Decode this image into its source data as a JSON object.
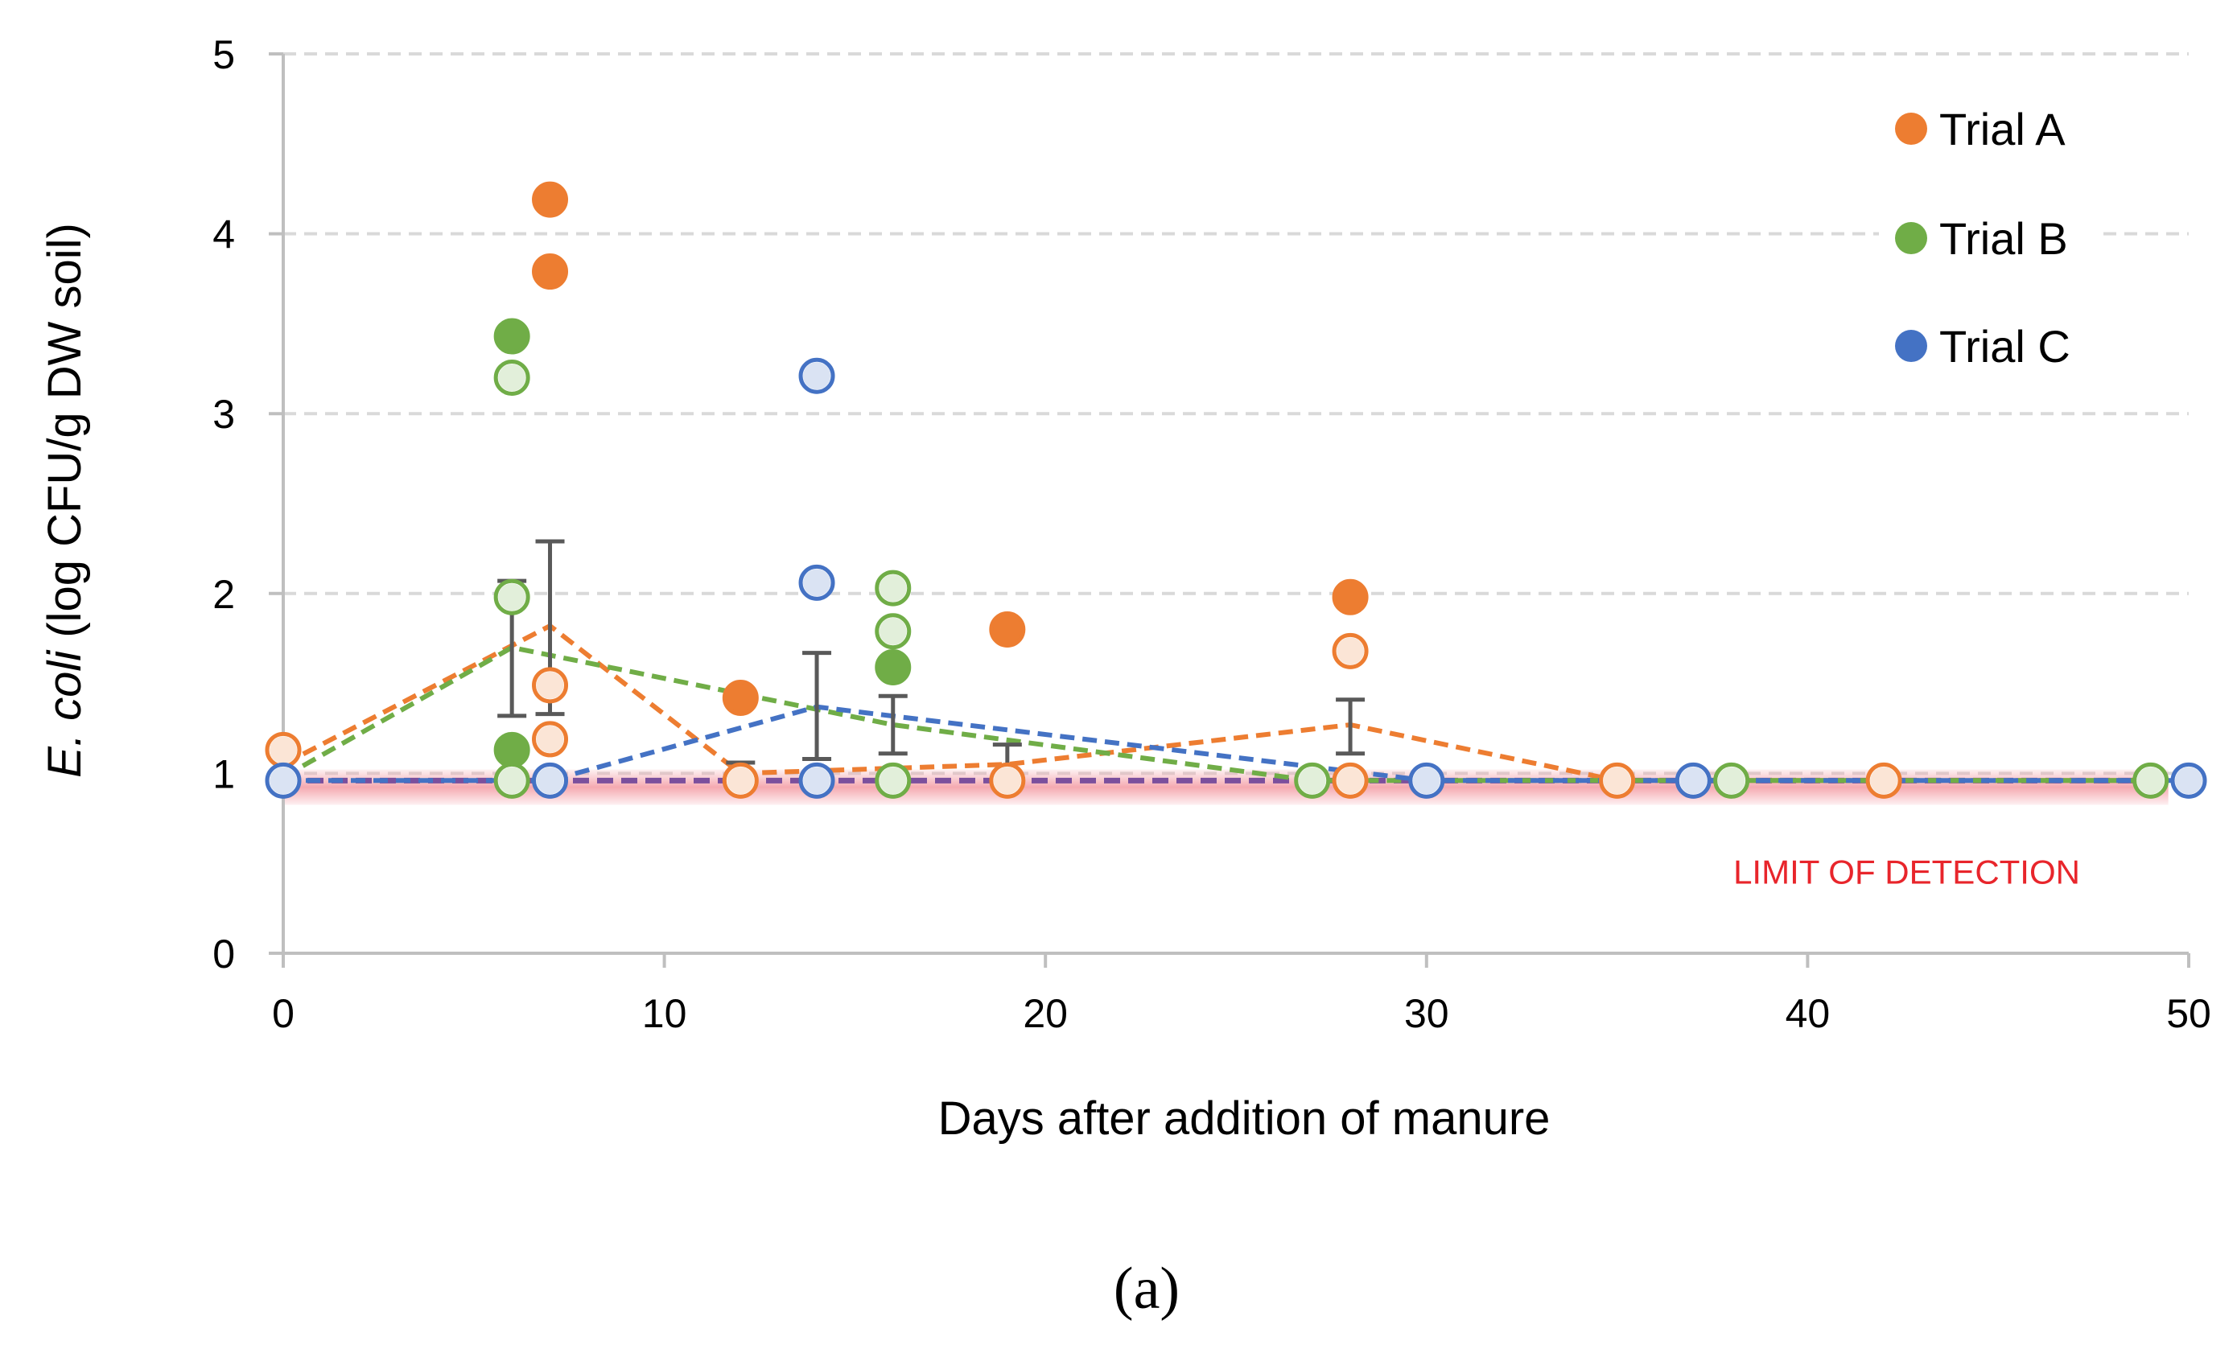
{
  "chart_data": {
    "type": "scatter",
    "title": "",
    "xlabel": "Days after addition of manure",
    "ylabel_italic": "E. coli",
    "ylabel_rest": " (log CFU/g DW soil)",
    "xlim": [
      0,
      50
    ],
    "ylim": [
      0,
      5
    ],
    "xticks": [
      "0",
      "10",
      "20",
      "30",
      "40",
      "50"
    ],
    "yticks": [
      "0",
      "1",
      "2",
      "3",
      "4",
      "5"
    ],
    "grid": "horizontal dashed",
    "legend_position": "top-right",
    "limit_of_detection": {
      "label": "LIMIT OF DETECTION",
      "value": 0.95,
      "color": "#f4a0a8"
    },
    "caption": "(a)",
    "colors": {
      "A": "#ed7d31",
      "B": "#70ad47",
      "C": "#4472c4",
      "errorbar": "#595959",
      "grid": "#d9d9d9",
      "axis": "#bfbfbf"
    },
    "series": [
      {
        "key": "A",
        "name": "Trial A",
        "color": "#ed7d31",
        "points": [
          {
            "x": 0,
            "y": 1.13,
            "fill": "open"
          },
          {
            "x": 7,
            "y": 4.19,
            "fill": "solid"
          },
          {
            "x": 7,
            "y": 3.79,
            "fill": "solid"
          },
          {
            "x": 7,
            "y": 1.49,
            "fill": "open"
          },
          {
            "x": 7,
            "y": 1.19,
            "fill": "open"
          },
          {
            "x": 12,
            "y": 1.42,
            "fill": "solid"
          },
          {
            "x": 12,
            "y": 0.96,
            "fill": "open"
          },
          {
            "x": 19,
            "y": 1.8,
            "fill": "solid"
          },
          {
            "x": 19,
            "y": 0.96,
            "fill": "open"
          },
          {
            "x": 28,
            "y": 1.98,
            "fill": "solid"
          },
          {
            "x": 28,
            "y": 1.68,
            "fill": "open"
          },
          {
            "x": 28,
            "y": 0.96,
            "fill": "open"
          },
          {
            "x": 35,
            "y": 0.96,
            "fill": "open"
          },
          {
            "x": 42,
            "y": 0.96,
            "fill": "open"
          }
        ],
        "mean_line": [
          {
            "x": 0,
            "y": 1.05
          },
          {
            "x": 7,
            "y": 1.82
          },
          {
            "x": 12,
            "y": 1.0
          },
          {
            "x": 19,
            "y": 1.05
          },
          {
            "x": 28,
            "y": 1.27
          },
          {
            "x": 35,
            "y": 0.96
          },
          {
            "x": 49,
            "y": 0.96
          }
        ]
      },
      {
        "key": "B",
        "name": "Trial B",
        "color": "#70ad47",
        "points": [
          {
            "x": 6,
            "y": 3.43,
            "fill": "solid"
          },
          {
            "x": 6,
            "y": 3.2,
            "fill": "open"
          },
          {
            "x": 6,
            "y": 1.98,
            "fill": "open"
          },
          {
            "x": 6,
            "y": 1.13,
            "fill": "solid"
          },
          {
            "x": 6,
            "y": 0.96,
            "fill": "open"
          },
          {
            "x": 16,
            "y": 2.03,
            "fill": "open"
          },
          {
            "x": 16,
            "y": 1.79,
            "fill": "open"
          },
          {
            "x": 16,
            "y": 1.59,
            "fill": "solid"
          },
          {
            "x": 16,
            "y": 0.96,
            "fill": "open"
          },
          {
            "x": 27,
            "y": 0.96,
            "fill": "open"
          },
          {
            "x": 38,
            "y": 0.96,
            "fill": "open"
          },
          {
            "x": 49,
            "y": 0.96,
            "fill": "open"
          }
        ],
        "mean_line": [
          {
            "x": 0,
            "y": 0.98
          },
          {
            "x": 6,
            "y": 1.7
          },
          {
            "x": 16,
            "y": 1.27
          },
          {
            "x": 27,
            "y": 0.96
          },
          {
            "x": 49,
            "y": 0.96
          }
        ]
      },
      {
        "key": "C",
        "name": "Trial C",
        "color": "#4472c4",
        "points": [
          {
            "x": 0,
            "y": 0.96,
            "fill": "open"
          },
          {
            "x": 7,
            "y": 0.96,
            "fill": "open"
          },
          {
            "x": 14,
            "y": 3.21,
            "fill": "open"
          },
          {
            "x": 14,
            "y": 2.06,
            "fill": "open"
          },
          {
            "x": 14,
            "y": 0.96,
            "fill": "open"
          },
          {
            "x": 30,
            "y": 0.96,
            "fill": "open"
          },
          {
            "x": 37,
            "y": 0.96,
            "fill": "open"
          },
          {
            "x": 50,
            "y": 0.96,
            "fill": "open"
          }
        ],
        "mean_line": [
          {
            "x": 0,
            "y": 0.96
          },
          {
            "x": 7,
            "y": 0.96
          },
          {
            "x": 14,
            "y": 1.37
          },
          {
            "x": 30,
            "y": 0.96
          },
          {
            "x": 50,
            "y": 0.96
          }
        ]
      }
    ],
    "error_bars": [
      {
        "x": 6,
        "low": 1.32,
        "high": 2.07
      },
      {
        "x": 7,
        "low": 1.33,
        "high": 2.29
      },
      {
        "x": 12,
        "low": 0.96,
        "high": 1.06
      },
      {
        "x": 14,
        "low": 1.08,
        "high": 1.67
      },
      {
        "x": 16,
        "low": 1.11,
        "high": 1.43
      },
      {
        "x": 19,
        "low": 0.96,
        "high": 1.16
      },
      {
        "x": 28,
        "low": 1.11,
        "high": 1.41
      }
    ],
    "purple_baseline": {
      "x_start": 0,
      "x_end": 49,
      "y": 0.96,
      "color": "#7b4f9d"
    }
  }
}
